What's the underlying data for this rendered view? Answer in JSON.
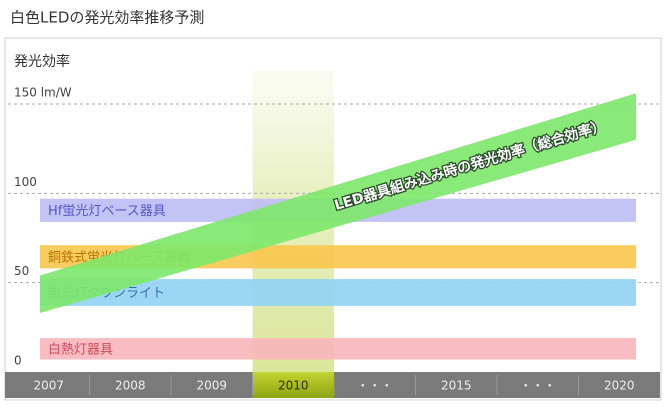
{
  "chart_data": {
    "type": "range_bar",
    "title": "白色LEDの発光効率推移予測",
    "y_label": "発光効率",
    "categories": [
      "2007",
      "2008",
      "2009",
      "2010",
      "・・・",
      "2015",
      "・・・",
      "2020"
    ],
    "highlight": "2010",
    "ylim": [
      0,
      150
    ],
    "yticks": [
      0,
      50,
      100,
      {
        "value": 150,
        "label": "150 lm/W"
      }
    ],
    "grid": true,
    "bands": [
      {
        "name": "Hf蛍光灯ベース器具",
        "color": "#bcbcf4",
        "text_color": "#5656c8",
        "range": [
          84,
          97
        ]
      },
      {
        "name": "銅鉄式蛍光灯ベース器具",
        "color": "#f8c64e",
        "text_color": "#b87400",
        "range": [
          58,
          71
        ]
      },
      {
        "name": "蛍光灯ダウンライト",
        "color": "#92d2f4",
        "text_color": "#2a76a8",
        "range": [
          37,
          52
        ]
      },
      {
        "name": "白熱灯器具",
        "color": "#f8b6ba",
        "text_color": "#cc4c5c",
        "range": [
          7,
          19
        ]
      }
    ],
    "trend": {
      "name": "LED器具組み込み時の発光効率（総合効率）",
      "color": "#7de86a",
      "start": [
        33,
        54
      ],
      "end": [
        130,
        156
      ]
    }
  }
}
